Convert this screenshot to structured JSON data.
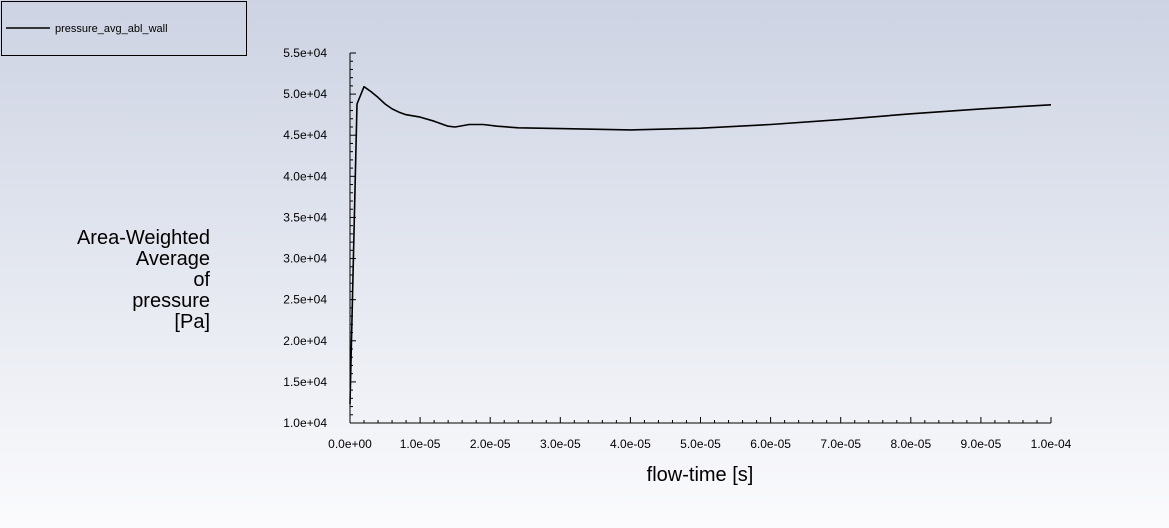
{
  "chart_data": {
    "type": "line",
    "xlabel": "flow-time [s]",
    "ylabel_lines": [
      "Area-Weighted",
      "Average",
      "of",
      "pressure",
      "[Pa]"
    ],
    "xlim": [
      0,
      0.0001
    ],
    "ylim": [
      10000,
      55000
    ],
    "x_ticks": [
      "0.0e+00",
      "1.0e-05",
      "2.0e-05",
      "3.0e-05",
      "4.0e-05",
      "5.0e-05",
      "6.0e-05",
      "7.0e-05",
      "8.0e-05",
      "9.0e-05",
      "1.0e-04"
    ],
    "y_ticks": [
      "1.0e+04",
      "1.5e+04",
      "2.0e+04",
      "2.5e+04",
      "3.0e+04",
      "3.5e+04",
      "4.0e+04",
      "4.5e+04",
      "5.0e+04",
      "5.5e+04"
    ],
    "grid": false,
    "legend_position": "top-left",
    "series": [
      {
        "name": "pressure_avg_abl_wall",
        "color": "#000000",
        "x": [
          0,
          1e-06,
          2e-06,
          3e-06,
          4e-06,
          5e-06,
          6e-06,
          7e-06,
          8e-06,
          1e-05,
          1.2e-05,
          1.4e-05,
          1.5e-05,
          1.7e-05,
          1.9e-05,
          2.1e-05,
          2.4e-05,
          3e-05,
          4e-05,
          5e-05,
          6e-05,
          7e-05,
          8e-05,
          9e-05,
          0.0001
        ],
        "y": [
          12300,
          48800,
          50900,
          50300,
          49600,
          48800,
          48200,
          47800,
          47500,
          47200,
          46700,
          46100,
          46000,
          46300,
          46300,
          46100,
          45900,
          45800,
          45650,
          45850,
          46300,
          46900,
          47600,
          48200,
          48700
        ]
      }
    ]
  }
}
